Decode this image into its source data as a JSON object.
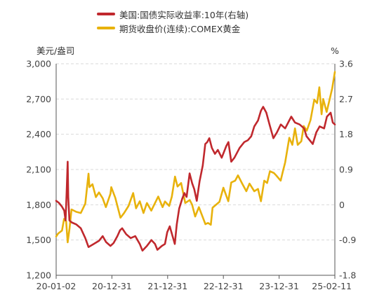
{
  "chart_data": {
    "type": "line",
    "legend_position": "top-center",
    "grid": true,
    "left_unit": "美元/盎司",
    "right_unit": "%",
    "x_ticks": [
      "20-01-02",
      "20-12-31",
      "21-12-31",
      "22-12-31",
      "23-12-31",
      "25-02-11"
    ],
    "x_range": [
      "2020-01-02",
      "2025-02-11"
    ],
    "y_left": {
      "min": 1200,
      "max": 3000,
      "ticks": [
        "3,000",
        "2,700",
        "2,400",
        "2,100",
        "1,800",
        "1,500",
        "1,200"
      ]
    },
    "y_right": {
      "min": -1.8,
      "max": 3.6,
      "ticks": [
        "3.6",
        "2.7",
        "1.8",
        "0.9",
        "0",
        "-0.9",
        "-1.8"
      ]
    },
    "series": [
      {
        "name": "美国:国债实际收益率:10年(右轴)",
        "axis": "right",
        "color": "#c0282d",
        "points": [
          [
            "2020-01-02",
            0.1
          ],
          [
            "2020-01-20",
            0.05
          ],
          [
            "2020-02-10",
            -0.05
          ],
          [
            "2020-02-25",
            -0.15
          ],
          [
            "2020-03-05",
            -0.4
          ],
          [
            "2020-03-12",
            0.3
          ],
          [
            "2020-03-19",
            1.1
          ],
          [
            "2020-03-23",
            0.2
          ],
          [
            "2020-03-31",
            -0.4
          ],
          [
            "2020-04-15",
            -0.45
          ],
          [
            "2020-05-15",
            -0.5
          ],
          [
            "2020-06-15",
            -0.6
          ],
          [
            "2020-07-15",
            -0.85
          ],
          [
            "2020-08-06",
            -1.08
          ],
          [
            "2020-09-01",
            -1.02
          ],
          [
            "2020-10-01",
            -0.95
          ],
          [
            "2020-10-15",
            -0.92
          ],
          [
            "2020-11-09",
            -0.8
          ],
          [
            "2020-12-01",
            -0.95
          ],
          [
            "2020-12-31",
            -1.05
          ],
          [
            "2021-01-20",
            -0.98
          ],
          [
            "2021-02-15",
            -0.8
          ],
          [
            "2021-03-05",
            -0.65
          ],
          [
            "2021-03-19",
            -0.6
          ],
          [
            "2021-04-15",
            -0.75
          ],
          [
            "2021-05-15",
            -0.85
          ],
          [
            "2021-06-15",
            -0.8
          ],
          [
            "2021-07-15",
            -1.0
          ],
          [
            "2021-08-02",
            -1.17
          ],
          [
            "2021-09-01",
            -1.05
          ],
          [
            "2021-10-01",
            -0.9
          ],
          [
            "2021-10-25",
            -1.0
          ],
          [
            "2021-11-10",
            -1.15
          ],
          [
            "2021-12-10",
            -1.05
          ],
          [
            "2021-12-31",
            -1.0
          ],
          [
            "2022-01-15",
            -0.7
          ],
          [
            "2022-02-01",
            -0.55
          ],
          [
            "2022-03-07",
            -1.0
          ],
          [
            "2022-03-20",
            -0.5
          ],
          [
            "2022-04-05",
            -0.1
          ],
          [
            "2022-04-25",
            0.15
          ],
          [
            "2022-05-10",
            0.3
          ],
          [
            "2022-05-25",
            0.2
          ],
          [
            "2022-06-14",
            0.8
          ],
          [
            "2022-07-01",
            0.55
          ],
          [
            "2022-07-15",
            0.4
          ],
          [
            "2022-08-01",
            0.1
          ],
          [
            "2022-08-20",
            0.6
          ],
          [
            "2022-09-10",
            1.0
          ],
          [
            "2022-09-27",
            1.55
          ],
          [
            "2022-10-10",
            1.6
          ],
          [
            "2022-10-24",
            1.7
          ],
          [
            "2022-11-10",
            1.45
          ],
          [
            "2022-12-01",
            1.3
          ],
          [
            "2022-12-20",
            1.4
          ],
          [
            "2023-01-15",
            1.2
          ],
          [
            "2023-02-15",
            1.5
          ],
          [
            "2023-03-01",
            1.6
          ],
          [
            "2023-03-20",
            1.1
          ],
          [
            "2023-04-10",
            1.2
          ],
          [
            "2023-05-15",
            1.45
          ],
          [
            "2023-06-15",
            1.6
          ],
          [
            "2023-07-10",
            1.65
          ],
          [
            "2023-08-01",
            1.75
          ],
          [
            "2023-08-21",
            2.0
          ],
          [
            "2023-09-15",
            2.15
          ],
          [
            "2023-10-05",
            2.4
          ],
          [
            "2023-10-20",
            2.5
          ],
          [
            "2023-11-10",
            2.35
          ],
          [
            "2023-12-01",
            2.05
          ],
          [
            "2023-12-27",
            1.7
          ],
          [
            "2024-01-20",
            1.85
          ],
          [
            "2024-02-15",
            2.05
          ],
          [
            "2024-03-15",
            1.95
          ],
          [
            "2024-04-25",
            2.25
          ],
          [
            "2024-05-20",
            2.1
          ],
          [
            "2024-06-20",
            2.05
          ],
          [
            "2024-07-20",
            1.95
          ],
          [
            "2024-08-05",
            1.75
          ],
          [
            "2024-09-16",
            1.55
          ],
          [
            "2024-10-10",
            1.85
          ],
          [
            "2024-11-01",
            2.0
          ],
          [
            "2024-12-01",
            1.95
          ],
          [
            "2024-12-20",
            2.25
          ],
          [
            "2025-01-14",
            2.35
          ],
          [
            "2025-01-28",
            2.1
          ],
          [
            "2025-02-11",
            2.05
          ]
        ]
      },
      {
        "name": "期货收盘价(连续):COMEX黄金",
        "axis": "left",
        "color": "#e8b20c",
        "points": [
          [
            "2020-01-02",
            1530
          ],
          [
            "2020-01-15",
            1555
          ],
          [
            "2020-02-10",
            1580
          ],
          [
            "2020-02-24",
            1680
          ],
          [
            "2020-03-09",
            1660
          ],
          [
            "2020-03-19",
            1480
          ],
          [
            "2020-04-01",
            1600
          ],
          [
            "2020-04-14",
            1760
          ],
          [
            "2020-05-15",
            1740
          ],
          [
            "2020-06-15",
            1730
          ],
          [
            "2020-07-15",
            1810
          ],
          [
            "2020-08-06",
            2065
          ],
          [
            "2020-08-12",
            1950
          ],
          [
            "2020-09-01",
            1975
          ],
          [
            "2020-09-24",
            1865
          ],
          [
            "2020-10-15",
            1905
          ],
          [
            "2020-11-09",
            1855
          ],
          [
            "2020-11-30",
            1780
          ],
          [
            "2020-12-31",
            1895
          ],
          [
            "2021-01-05",
            1950
          ],
          [
            "2021-02-01",
            1860
          ],
          [
            "2021-03-08",
            1690
          ],
          [
            "2021-04-01",
            1730
          ],
          [
            "2021-05-01",
            1790
          ],
          [
            "2021-06-01",
            1900
          ],
          [
            "2021-06-20",
            1770
          ],
          [
            "2021-07-15",
            1830
          ],
          [
            "2021-08-09",
            1730
          ],
          [
            "2021-09-01",
            1815
          ],
          [
            "2021-09-30",
            1750
          ],
          [
            "2021-11-16",
            1870
          ],
          [
            "2021-12-15",
            1780
          ],
          [
            "2021-12-31",
            1828
          ],
          [
            "2022-01-28",
            1790
          ],
          [
            "2022-02-15",
            1870
          ],
          [
            "2022-03-08",
            2040
          ],
          [
            "2022-03-25",
            1955
          ],
          [
            "2022-04-18",
            1985
          ],
          [
            "2022-05-16",
            1815
          ],
          [
            "2022-06-15",
            1840
          ],
          [
            "2022-07-01",
            1800
          ],
          [
            "2022-07-21",
            1700
          ],
          [
            "2022-08-15",
            1780
          ],
          [
            "2022-09-28",
            1635
          ],
          [
            "2022-10-15",
            1645
          ],
          [
            "2022-11-03",
            1630
          ],
          [
            "2022-11-15",
            1775
          ],
          [
            "2022-12-31",
            1825
          ],
          [
            "2023-01-26",
            1945
          ],
          [
            "2023-02-28",
            1830
          ],
          [
            "2023-03-20",
            1990
          ],
          [
            "2023-04-15",
            2005
          ],
          [
            "2023-05-04",
            2050
          ],
          [
            "2023-06-01",
            1980
          ],
          [
            "2023-06-29",
            1915
          ],
          [
            "2023-07-20",
            1980
          ],
          [
            "2023-08-21",
            1915
          ],
          [
            "2023-09-15",
            1935
          ],
          [
            "2023-10-05",
            1830
          ],
          [
            "2023-10-27",
            2005
          ],
          [
            "2023-11-15",
            1985
          ],
          [
            "2023-12-04",
            2085
          ],
          [
            "2023-12-31",
            2070
          ],
          [
            "2024-01-15",
            2050
          ],
          [
            "2024-02-14",
            2005
          ],
          [
            "2024-03-01",
            2090
          ],
          [
            "2024-03-15",
            2160
          ],
          [
            "2024-04-12",
            2370
          ],
          [
            "2024-05-02",
            2310
          ],
          [
            "2024-05-20",
            2450
          ],
          [
            "2024-06-07",
            2310
          ],
          [
            "2024-07-01",
            2340
          ],
          [
            "2024-07-17",
            2470
          ],
          [
            "2024-08-07",
            2430
          ],
          [
            "2024-09-01",
            2520
          ],
          [
            "2024-09-26",
            2695
          ],
          [
            "2024-10-15",
            2665
          ],
          [
            "2024-10-30",
            2800
          ],
          [
            "2024-11-14",
            2570
          ],
          [
            "2024-11-25",
            2700
          ],
          [
            "2024-12-18",
            2590
          ],
          [
            "2025-01-02",
            2670
          ],
          [
            "2025-01-24",
            2790
          ],
          [
            "2025-02-11",
            2930
          ]
        ]
      }
    ]
  }
}
